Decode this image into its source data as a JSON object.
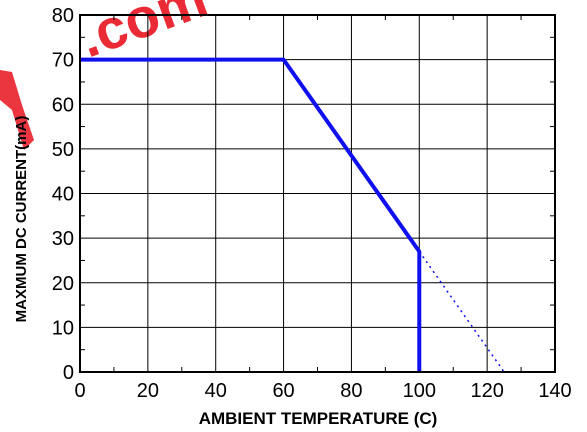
{
  "chart_data": {
    "type": "line",
    "title": "",
    "xlabel": "AMBIENT TEMPERATURE (C)",
    "ylabel": "MAXMUM DC CURRENT(mA)",
    "xlim": [
      0,
      140
    ],
    "ylim": [
      0,
      80
    ],
    "x_ticks": [
      0,
      20,
      40,
      60,
      80,
      100,
      120,
      140
    ],
    "y_ticks": [
      0,
      10,
      20,
      30,
      40,
      50,
      60,
      70,
      80
    ],
    "x_tick_labels": [
      "0",
      "20",
      "40",
      "60",
      "80",
      "100",
      "120",
      "140"
    ],
    "y_tick_labels": [
      "0",
      "10",
      "20",
      "30",
      "40",
      "50",
      "60",
      "70",
      "80"
    ],
    "grid": true,
    "legend": "none",
    "series": [
      {
        "style": "solid",
        "color": "#1010ee",
        "points": [
          [
            0,
            70
          ],
          [
            60,
            70
          ],
          [
            100,
            27
          ],
          [
            100,
            0
          ]
        ]
      },
      {
        "style": "dotted",
        "color": "#1010ee",
        "points": [
          [
            100,
            27
          ],
          [
            125,
            0
          ]
        ]
      }
    ]
  },
  "watermark": {
    "text": ".com",
    "color": "#e8131f"
  }
}
